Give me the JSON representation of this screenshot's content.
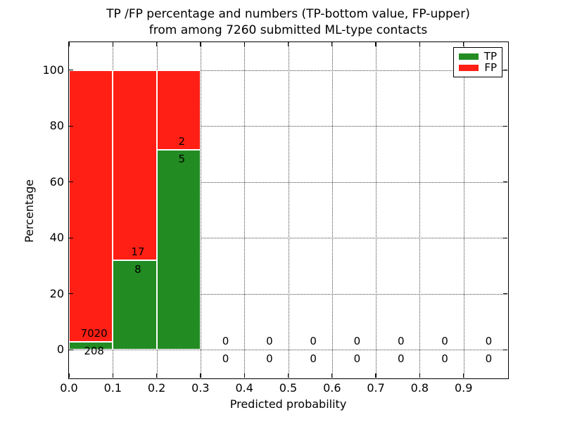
{
  "chart_data": {
    "type": "bar",
    "stacked": true,
    "title": "TP /FP percentage and numbers (TP-bottom value, FP-upper)\nfrom among 7260 submitted ML-type contacts",
    "title_lines": [
      "TP /FP percentage and numbers (TP-bottom value, FP-upper)",
      "from among 7260 submitted ML-type contacts"
    ],
    "xlabel": "Predicted probability",
    "ylabel": "Percentage",
    "xlim": [
      0.0,
      1.0
    ],
    "ylim": [
      -10,
      110
    ],
    "grid": true,
    "bin_width": 0.1,
    "bin_starts": [
      0.0,
      0.1,
      0.2,
      0.3,
      0.4,
      0.5,
      0.6,
      0.7,
      0.8,
      0.9
    ],
    "xticks": [
      0.0,
      0.1,
      0.2,
      0.3,
      0.4,
      0.5,
      0.6,
      0.7,
      0.8,
      0.9
    ],
    "xtick_labels": [
      "0.0",
      "0.1",
      "0.2",
      "0.3",
      "0.4",
      "0.5",
      "0.6",
      "0.7",
      "0.8",
      "0.9"
    ],
    "yticks": [
      0,
      20,
      40,
      60,
      80,
      100
    ],
    "ytick_labels": [
      "0",
      "20",
      "40",
      "60",
      "80",
      "100"
    ],
    "series": [
      {
        "name": "TP",
        "color": "#228B22",
        "counts": [
          208,
          8,
          5,
          0,
          0,
          0,
          0,
          0,
          0,
          0
        ]
      },
      {
        "name": "FP",
        "color": "#FF1F14",
        "counts": [
          7020,
          17,
          2,
          0,
          0,
          0,
          0,
          0,
          0,
          0
        ]
      }
    ],
    "legend": {
      "position": "upper right",
      "entries": [
        {
          "label": "TP",
          "color": "#228B22"
        },
        {
          "label": "FP",
          "color": "#FF1F14"
        }
      ]
    }
  }
}
